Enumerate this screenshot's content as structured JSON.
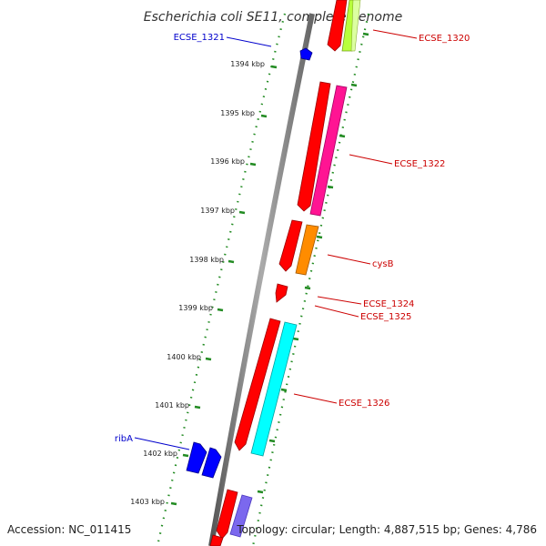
{
  "title": "Escherichia coli SE11, complete genome",
  "footer": {
    "accession": "Accession: NC_011415",
    "summary": "Topology: circular; Length: 4,887,515 bp; Genes: 4,786"
  },
  "kbp_ticks": [
    "1394 kbp",
    "1395 kbp",
    "1396 kbp",
    "1397 kbp",
    "1398 kbp",
    "1399 kbp",
    "1400 kbp",
    "1401 kbp",
    "1402 kbp",
    "1403 kbp"
  ],
  "gene_labels": {
    "ecse_1320": "ECSE_1320",
    "ecse_1321": "ECSE_1321",
    "ecse_1322": "ECSE_1322",
    "cysB": "cysB",
    "ecse_1324": "ECSE_1324",
    "ecse_1325": "ECSE_1325",
    "ecse_1326": "ECSE_1326",
    "ribA": "ribA"
  },
  "colors": {
    "backbone": "#888888",
    "red_feature": "#ff0000",
    "magenta_feature": "#ff1493",
    "orange_feature": "#ff8c00",
    "cyan_feature": "#00ffff",
    "blue_feature": "#0000ff",
    "lavender_feature": "#7b68ee",
    "lime_feature": "#b8ff3c",
    "label_red": "#cc0000",
    "label_blue": "#0000cc",
    "tick_green": "#228b22"
  }
}
